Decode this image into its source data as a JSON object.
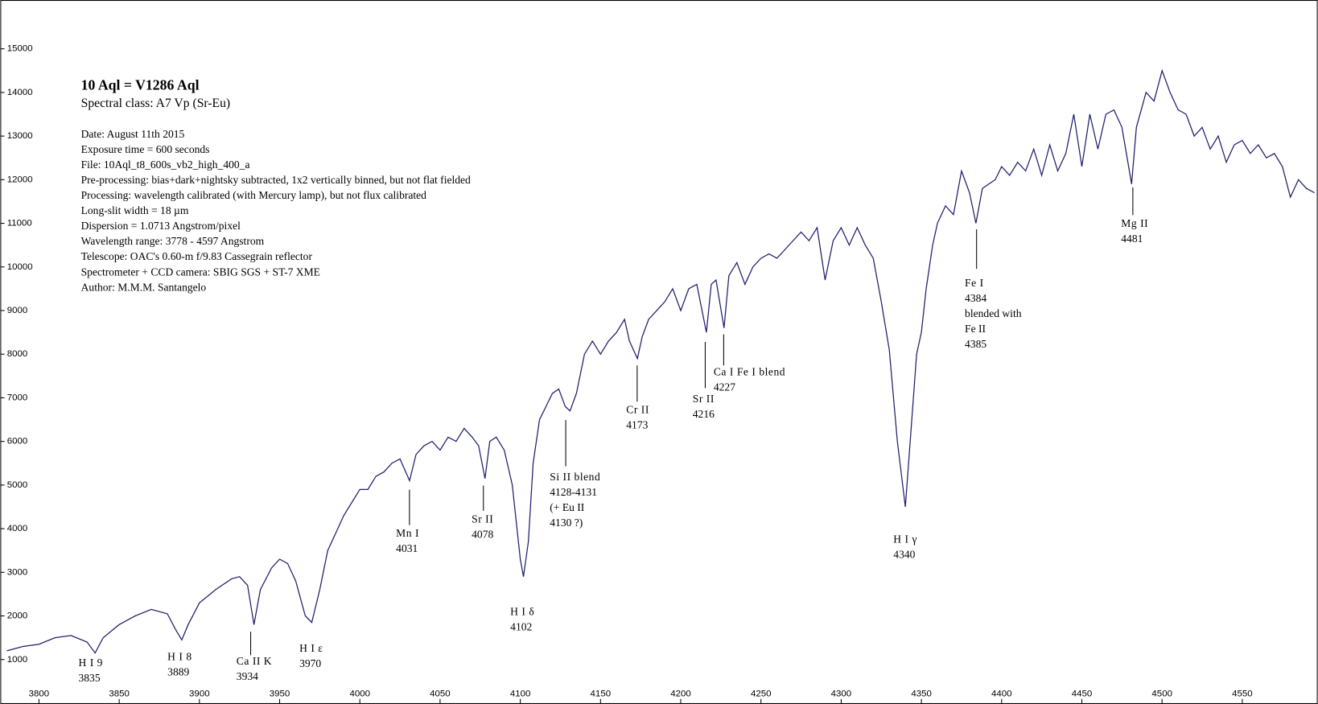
{
  "chart_data": {
    "type": "line",
    "title": "10 Aql = V1286 Aql",
    "subtitle": "Spectral class: A7 Vp (Sr-Eu)",
    "notes": [
      "Date: August 11th 2015",
      "Exposure time = 600 seconds",
      "File: 10Aql_t8_600s_vb2_high_400_a",
      "Pre-processing: bias+dark+nightsky subtracted, 1x2 vertically binned, but not flat fielded",
      "Processing: wavelength calibrated (with Mercury lamp), but not flux calibrated",
      "Long-slit width = 18 µm",
      "Dispersion = 1.0713 Angstrom/pixel",
      "Wavelength range: 3778 - 4597 Angstrom",
      "Telescope: OAC's 0.60-m f/9.83 Cassegrain reflector",
      "Spectrometer + CCD camera: SBIG SGS + ST-7 XME",
      "Author: M.M.M. Santangelo"
    ],
    "annotations": [
      [
        "H I 9",
        "3835"
      ],
      [
        "H I 8",
        "3889"
      ],
      [
        "Ca II K",
        "3934"
      ],
      [
        "H I ε",
        "3970"
      ],
      [
        "Mn I",
        "4031"
      ],
      [
        "Sr II",
        "4078"
      ],
      [
        "H I δ",
        "4102"
      ],
      [
        "Si II blend",
        "4128-4131",
        "(+ Eu II",
        "4130 ?)"
      ],
      [
        "Cr II",
        "4173"
      ],
      [
        "Sr II",
        "4216"
      ],
      [
        "Ca I Fe I blend",
        "4227"
      ],
      [
        "H I γ",
        "4340"
      ],
      [
        "Fe I",
        "4384",
        "blended with",
        "Fe II",
        "4385"
      ],
      [
        "Mg II",
        "4481"
      ]
    ],
    "x": [
      3780,
      3790,
      3800,
      3810,
      3820,
      3830,
      3835,
      3840,
      3850,
      3860,
      3870,
      3880,
      3885,
      3889,
      3893,
      3900,
      3910,
      3920,
      3925,
      3930,
      3934,
      3938,
      3945,
      3950,
      3955,
      3960,
      3966,
      3970,
      3975,
      3980,
      3985,
      3990,
      3995,
      4000,
      4005,
      4010,
      4015,
      4020,
      4025,
      4031,
      4035,
      4040,
      4045,
      4050,
      4055,
      4060,
      4065,
      4070,
      4074,
      4078,
      4081,
      4085,
      4090,
      4095,
      4100,
      4102,
      4105,
      4108,
      4112,
      4116,
      4120,
      4124,
      4128,
      4131,
      4135,
      4140,
      4145,
      4150,
      4155,
      4160,
      4165,
      4168,
      4173,
      4176,
      4180,
      4185,
      4190,
      4195,
      4200,
      4205,
      4210,
      4216,
      4219,
      4222,
      4227,
      4230,
      4235,
      4240,
      4245,
      4250,
      4255,
      4260,
      4265,
      4270,
      4275,
      4280,
      4285,
      4290,
      4295,
      4300,
      4305,
      4310,
      4315,
      4320,
      4325,
      4330,
      4335,
      4340,
      4344,
      4347,
      4350,
      4353,
      4357,
      4360,
      4365,
      4370,
      4375,
      4380,
      4384,
      4388,
      4392,
      4396,
      4400,
      4405,
      4410,
      4415,
      4420,
      4425,
      4430,
      4435,
      4440,
      4445,
      4450,
      4455,
      4460,
      4465,
      4470,
      4475,
      4481,
      4484,
      4490,
      4495,
      4500,
      4505,
      4510,
      4515,
      4520,
      4525,
      4530,
      4535,
      4540,
      4545,
      4550,
      4555,
      4560,
      4565,
      4570,
      4575,
      4580,
      4585,
      4590,
      4595
    ],
    "series": [
      {
        "color": "#1f1f6e",
        "values": [
          1200,
          1300,
          1350,
          1500,
          1550,
          1400,
          1150,
          1500,
          1800,
          2000,
          2150,
          2050,
          1700,
          1450,
          1800,
          2300,
          2600,
          2850,
          2900,
          2700,
          1800,
          2600,
          3100,
          3300,
          3200,
          2800,
          2000,
          1850,
          2600,
          3500,
          3900,
          4300,
          4600,
          4900,
          4900,
          5200,
          5300,
          5500,
          5600,
          5100,
          5700,
          5900,
          6000,
          5800,
          6100,
          6000,
          6300,
          6100,
          5900,
          5150,
          6000,
          6100,
          5800,
          5000,
          3300,
          2900,
          3700,
          5500,
          6500,
          6800,
          7100,
          7200,
          6800,
          6700,
          7100,
          8000,
          8300,
          8000,
          8300,
          8500,
          8800,
          8300,
          7900,
          8400,
          8800,
          9000,
          9200,
          9500,
          9000,
          9500,
          9600,
          8500,
          9600,
          9700,
          8600,
          9800,
          10100,
          9600,
          10000,
          10200,
          10300,
          10200,
          10400,
          10600,
          10800,
          10600,
          10900,
          9700,
          10600,
          10900,
          10500,
          10900,
          10500,
          10200,
          9200,
          8100,
          6000,
          4500,
          6500,
          8000,
          8500,
          9500,
          10500,
          11000,
          11400,
          11200,
          12200,
          11700,
          11000,
          11800,
          11900,
          12000,
          12300,
          12100,
          12400,
          12200,
          12700,
          12100,
          12800,
          12200,
          12600,
          13500,
          12300,
          13500,
          12700,
          13500,
          13600,
          13200,
          11900,
          13200,
          14000,
          13800,
          14500,
          14000,
          13600,
          13500,
          13000,
          13200,
          12700,
          13000,
          12400,
          12800,
          12900,
          12600,
          12800,
          12500,
          12600,
          12300,
          11600,
          12000,
          11800,
          11700
        ]
      }
    ],
    "xlim": [
      3778,
      4597
    ],
    "ylim": [
      0,
      16100
    ],
    "xticks": [
      3800,
      3850,
      3900,
      3950,
      4000,
      4050,
      4100,
      4150,
      4200,
      4250,
      4300,
      4350,
      4400,
      4450,
      4500,
      4550
    ],
    "yticks": [
      1000,
      2000,
      3000,
      4000,
      5000,
      6000,
      7000,
      8000,
      9000,
      10000,
      11000,
      12000,
      13000,
      14000,
      15000
    ]
  }
}
